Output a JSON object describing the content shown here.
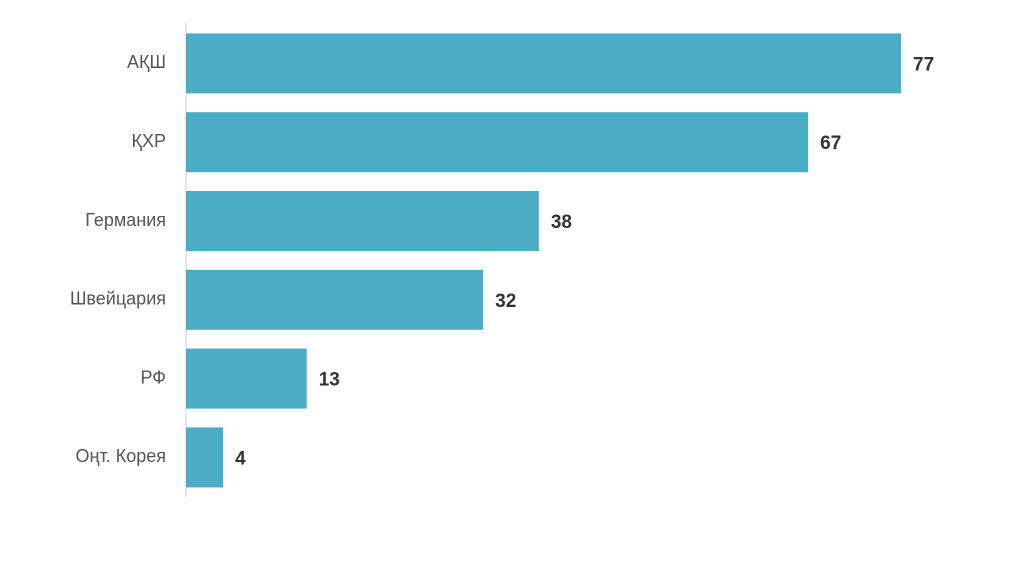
{
  "chart_data": {
    "type": "bar",
    "orientation": "horizontal",
    "categories": [
      "АҚШ",
      "ҚХР",
      "Германия",
      "Швейцария",
      "РФ",
      "Оңт. Корея"
    ],
    "values": [
      77,
      67,
      38,
      32,
      13,
      4
    ],
    "color": "#4aacc5"
  }
}
